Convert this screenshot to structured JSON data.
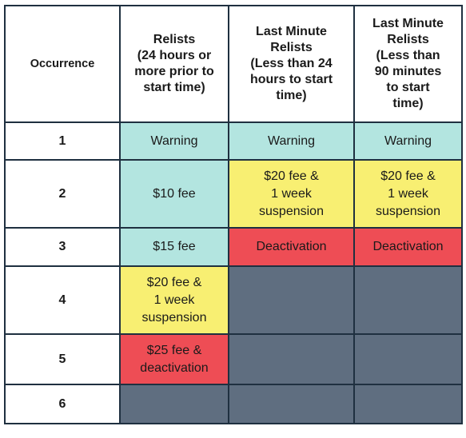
{
  "headers": [
    "Occurrence",
    "Relists\n(24 hours or\nmore prior to\nstart time)",
    "Last Minute\nRelists\n(Less than 24\nhours to start\ntime)",
    "Last Minute\nRelists\n(Less than\n90 minutes\nto start\ntime)"
  ],
  "rows": [
    {
      "occurrence": "1",
      "cells": [
        {
          "text": "Warning",
          "level": "warning"
        },
        {
          "text": "Warning",
          "level": "warning"
        },
        {
          "text": "Warning",
          "level": "warning"
        }
      ]
    },
    {
      "occurrence": "2",
      "cells": [
        {
          "text": "$10 fee",
          "level": "warning"
        },
        {
          "text": "$20 fee &\n1 week\nsuspension",
          "level": "fee"
        },
        {
          "text": "$20 fee &\n1 week\nsuspension",
          "level": "fee"
        }
      ]
    },
    {
      "occurrence": "3",
      "cells": [
        {
          "text": "$15 fee",
          "level": "warning"
        },
        {
          "text": "Deactivation",
          "level": "deactivation"
        },
        {
          "text": "Deactivation",
          "level": "deactivation"
        }
      ]
    },
    {
      "occurrence": "4",
      "cells": [
        {
          "text": "$20 fee &\n1 week\nsuspension",
          "level": "fee"
        },
        {
          "text": "",
          "level": "not-applicable"
        },
        {
          "text": "",
          "level": "not-applicable"
        }
      ]
    },
    {
      "occurrence": "5",
      "cells": [
        {
          "text": "$25 fee &\ndeactivation",
          "level": "deactivation"
        },
        {
          "text": "",
          "level": "not-applicable"
        },
        {
          "text": "",
          "level": "not-applicable"
        }
      ]
    },
    {
      "occurrence": "6",
      "cells": [
        {
          "text": "",
          "level": "not-applicable"
        },
        {
          "text": "",
          "level": "not-applicable"
        },
        {
          "text": "",
          "level": "not-applicable"
        }
      ]
    }
  ],
  "colors": {
    "warning": "#b3e5e0",
    "fee": "#f8ef72",
    "deactivation": "#ee4d55",
    "not-applicable": "#5f6e80",
    "border": "#1f3040"
  }
}
